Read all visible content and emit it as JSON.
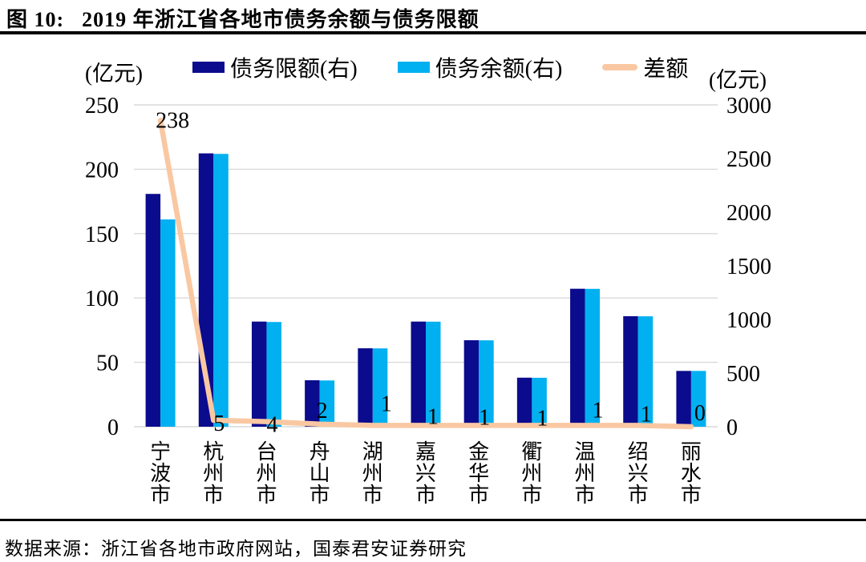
{
  "header": {
    "figure_label": "图 10:",
    "title": "2019 年浙江省各地市债务余额与债务限额"
  },
  "axes": {
    "left_unit": "(亿元)",
    "right_unit": "(亿元)"
  },
  "legend": {
    "items": [
      {
        "label": "债务限额(右)",
        "swatch": "rect",
        "color": "#0B0B8E"
      },
      {
        "label": "债务余额(右)",
        "swatch": "rect",
        "color": "#00B0F0"
      },
      {
        "label": "差额",
        "swatch": "line",
        "color": "#F9C8A2"
      }
    ]
  },
  "chart_data": {
    "type": "bar",
    "subtype": "grouped-bars-with-line",
    "title": "2019 年浙江省各地市债务余额与债务限额",
    "categories": [
      "宁波市",
      "杭州市",
      "台州市",
      "舟山市",
      "湖州市",
      "嘉兴市",
      "金华市",
      "衢州市",
      "温州市",
      "绍兴市",
      "丽水市"
    ],
    "series": [
      {
        "name": "债务限额(右)",
        "type": "bar",
        "axis": "right",
        "color": "#0B0B8E",
        "values": [
          2170,
          2548,
          980,
          433,
          731,
          980,
          806,
          457,
          1286,
          1030,
          520
        ]
      },
      {
        "name": "债务余额(右)",
        "type": "bar",
        "axis": "right",
        "color": "#00B0F0",
        "values": [
          1932,
          2543,
          976,
          431,
          730,
          979,
          805,
          456,
          1285,
          1029,
          520
        ]
      },
      {
        "name": "差额",
        "type": "line",
        "axis": "left",
        "color": "#F9C8A2",
        "values": [
          238,
          5,
          4,
          2,
          1,
          1,
          1,
          1,
          1,
          1,
          0
        ],
        "data_labels": [
          "238",
          "5",
          "4",
          "2",
          "1",
          "1",
          "1",
          "1",
          "1",
          "1",
          "0"
        ]
      }
    ],
    "left_axis": {
      "unit": "(亿元)",
      "min": 0,
      "max": 250,
      "ticks": [
        0,
        50,
        100,
        150,
        200,
        250
      ]
    },
    "right_axis": {
      "unit": "(亿元)",
      "min": 0,
      "max": 3000,
      "ticks": [
        0,
        500,
        1000,
        1500,
        2000,
        2500,
        3000
      ]
    },
    "grid": true,
    "grid_color": "#D9D9D9",
    "legend_position": "top"
  },
  "footer": {
    "source": "数据来源：浙江省各地市政府网站，国泰君安证券研究"
  }
}
